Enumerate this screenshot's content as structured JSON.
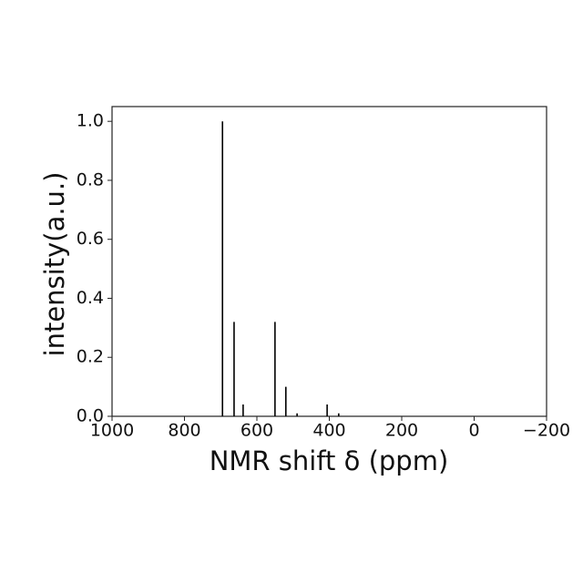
{
  "chart_data": {
    "type": "stem",
    "xlabel": "NMR shift δ (ppm)",
    "ylabel": "intensity(a.u.)",
    "x": [
      695,
      663,
      638,
      550,
      520,
      489,
      406,
      374
    ],
    "values": [
      1.0,
      0.32,
      0.04,
      0.32,
      0.1,
      0.01,
      0.04,
      0.01
    ],
    "color": "#000000",
    "xlim": [
      1000,
      -200
    ],
    "xticks": [
      1000,
      800,
      600,
      400,
      200,
      0,
      {
        "value": -200,
        "label": "−200"
      }
    ],
    "ylim": [
      0,
      1.05
    ],
    "yticks": [
      {
        "value": 0,
        "label": "0.0"
      },
      0.2,
      0.4,
      0.6,
      0.8,
      {
        "value": 1,
        "label": "1.0"
      }
    ]
  }
}
